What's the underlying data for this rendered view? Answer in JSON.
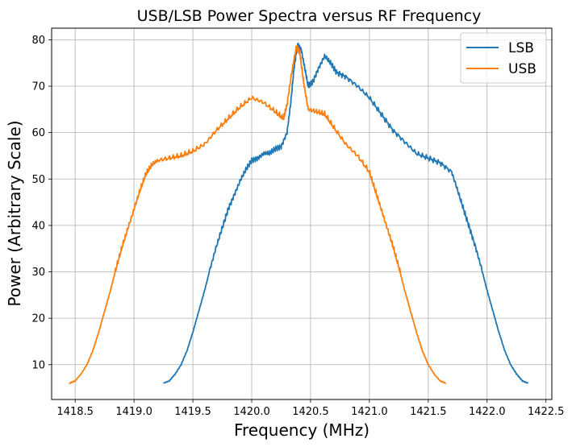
{
  "chart_data": {
    "type": "line",
    "title": "USB/LSB Power Spectra versus RF Frequency",
    "xlabel": "Frequency (MHz)",
    "ylabel": "Power (Arbitrary Scale)",
    "xlim": [
      1418.3,
      1422.55
    ],
    "ylim": [
      2.5,
      82.5
    ],
    "xticks": [
      1418.5,
      1419.0,
      1419.5,
      1420.0,
      1420.5,
      1421.0,
      1421.5,
      1422.0,
      1422.5
    ],
    "xtick_labels": [
      "1418.5",
      "1419.0",
      "1419.5",
      "1420.0",
      "1420.5",
      "1421.0",
      "1421.5",
      "1422.0",
      "1422.5"
    ],
    "yticks": [
      10,
      20,
      30,
      40,
      50,
      60,
      70,
      80
    ],
    "ytick_labels": [
      "10",
      "20",
      "30",
      "40",
      "50",
      "60",
      "70",
      "80"
    ],
    "grid": true,
    "legend_position": "top-right",
    "series": [
      {
        "name": "LSB",
        "color": "#1f77b4",
        "points": [
          [
            1419.25,
            6
          ],
          [
            1419.3,
            6.5
          ],
          [
            1419.35,
            8
          ],
          [
            1419.4,
            10
          ],
          [
            1419.45,
            13
          ],
          [
            1419.5,
            17
          ],
          [
            1419.55,
            21.5
          ],
          [
            1419.6,
            26
          ],
          [
            1419.65,
            31
          ],
          [
            1419.7,
            35.5
          ],
          [
            1419.75,
            39.5
          ],
          [
            1419.8,
            43.5
          ],
          [
            1419.85,
            46.5
          ],
          [
            1419.9,
            49.5
          ],
          [
            1419.95,
            52
          ],
          [
            1420.0,
            54
          ],
          [
            1420.05,
            54.5
          ],
          [
            1420.1,
            55.5
          ],
          [
            1420.15,
            55.5
          ],
          [
            1420.2,
            56.5
          ],
          [
            1420.25,
            57
          ],
          [
            1420.3,
            60
          ],
          [
            1420.33,
            66
          ],
          [
            1420.36,
            74
          ],
          [
            1420.39,
            79
          ],
          [
            1420.42,
            78
          ],
          [
            1420.45,
            74
          ],
          [
            1420.48,
            70
          ],
          [
            1420.52,
            71
          ],
          [
            1420.57,
            74
          ],
          [
            1420.62,
            76.5
          ],
          [
            1420.67,
            75
          ],
          [
            1420.72,
            73
          ],
          [
            1420.8,
            72
          ],
          [
            1420.9,
            70
          ],
          [
            1421.0,
            67.5
          ],
          [
            1421.1,
            64
          ],
          [
            1421.2,
            60.5
          ],
          [
            1421.3,
            58
          ],
          [
            1421.4,
            55.5
          ],
          [
            1421.5,
            54.5
          ],
          [
            1421.6,
            53.5
          ],
          [
            1421.7,
            51.5
          ],
          [
            1421.75,
            47.5
          ],
          [
            1421.8,
            43.5
          ],
          [
            1421.85,
            39.5
          ],
          [
            1421.9,
            35.5
          ],
          [
            1421.95,
            31
          ],
          [
            1422.0,
            26
          ],
          [
            1422.05,
            21.5
          ],
          [
            1422.1,
            17
          ],
          [
            1422.15,
            13
          ],
          [
            1422.2,
            10
          ],
          [
            1422.25,
            8
          ],
          [
            1422.3,
            6.5
          ],
          [
            1422.35,
            6
          ]
        ]
      },
      {
        "name": "USB",
        "color": "#ff7f0e",
        "points": [
          [
            1418.45,
            6
          ],
          [
            1418.5,
            6.5
          ],
          [
            1418.55,
            8
          ],
          [
            1418.6,
            10
          ],
          [
            1418.65,
            13
          ],
          [
            1418.7,
            17
          ],
          [
            1418.75,
            21.5
          ],
          [
            1418.8,
            26
          ],
          [
            1418.85,
            31
          ],
          [
            1418.9,
            35.5
          ],
          [
            1418.95,
            39.5
          ],
          [
            1419.0,
            43.5
          ],
          [
            1419.05,
            47.5
          ],
          [
            1419.1,
            51
          ],
          [
            1419.15,
            53
          ],
          [
            1419.2,
            54
          ],
          [
            1419.3,
            54.5
          ],
          [
            1419.4,
            55
          ],
          [
            1419.5,
            56
          ],
          [
            1419.6,
            57.5
          ],
          [
            1419.7,
            60.5
          ],
          [
            1419.8,
            63
          ],
          [
            1419.9,
            65.5
          ],
          [
            1420.0,
            67.5
          ],
          [
            1420.1,
            66.5
          ],
          [
            1420.2,
            64.5
          ],
          [
            1420.27,
            63
          ],
          [
            1420.3,
            66
          ],
          [
            1420.34,
            73
          ],
          [
            1420.38,
            78.5
          ],
          [
            1420.41,
            77
          ],
          [
            1420.44,
            71
          ],
          [
            1420.48,
            65
          ],
          [
            1420.55,
            64.5
          ],
          [
            1420.62,
            64
          ],
          [
            1420.7,
            61
          ],
          [
            1420.8,
            57.5
          ],
          [
            1420.9,
            55
          ],
          [
            1421.0,
            51.5
          ],
          [
            1421.05,
            47.5
          ],
          [
            1421.1,
            43.5
          ],
          [
            1421.15,
            39.5
          ],
          [
            1421.2,
            35.5
          ],
          [
            1421.25,
            31
          ],
          [
            1421.3,
            26
          ],
          [
            1421.35,
            21.5
          ],
          [
            1421.4,
            17
          ],
          [
            1421.45,
            13
          ],
          [
            1421.5,
            10
          ],
          [
            1421.55,
            8
          ],
          [
            1421.6,
            6.5
          ],
          [
            1421.65,
            6
          ]
        ]
      }
    ]
  }
}
